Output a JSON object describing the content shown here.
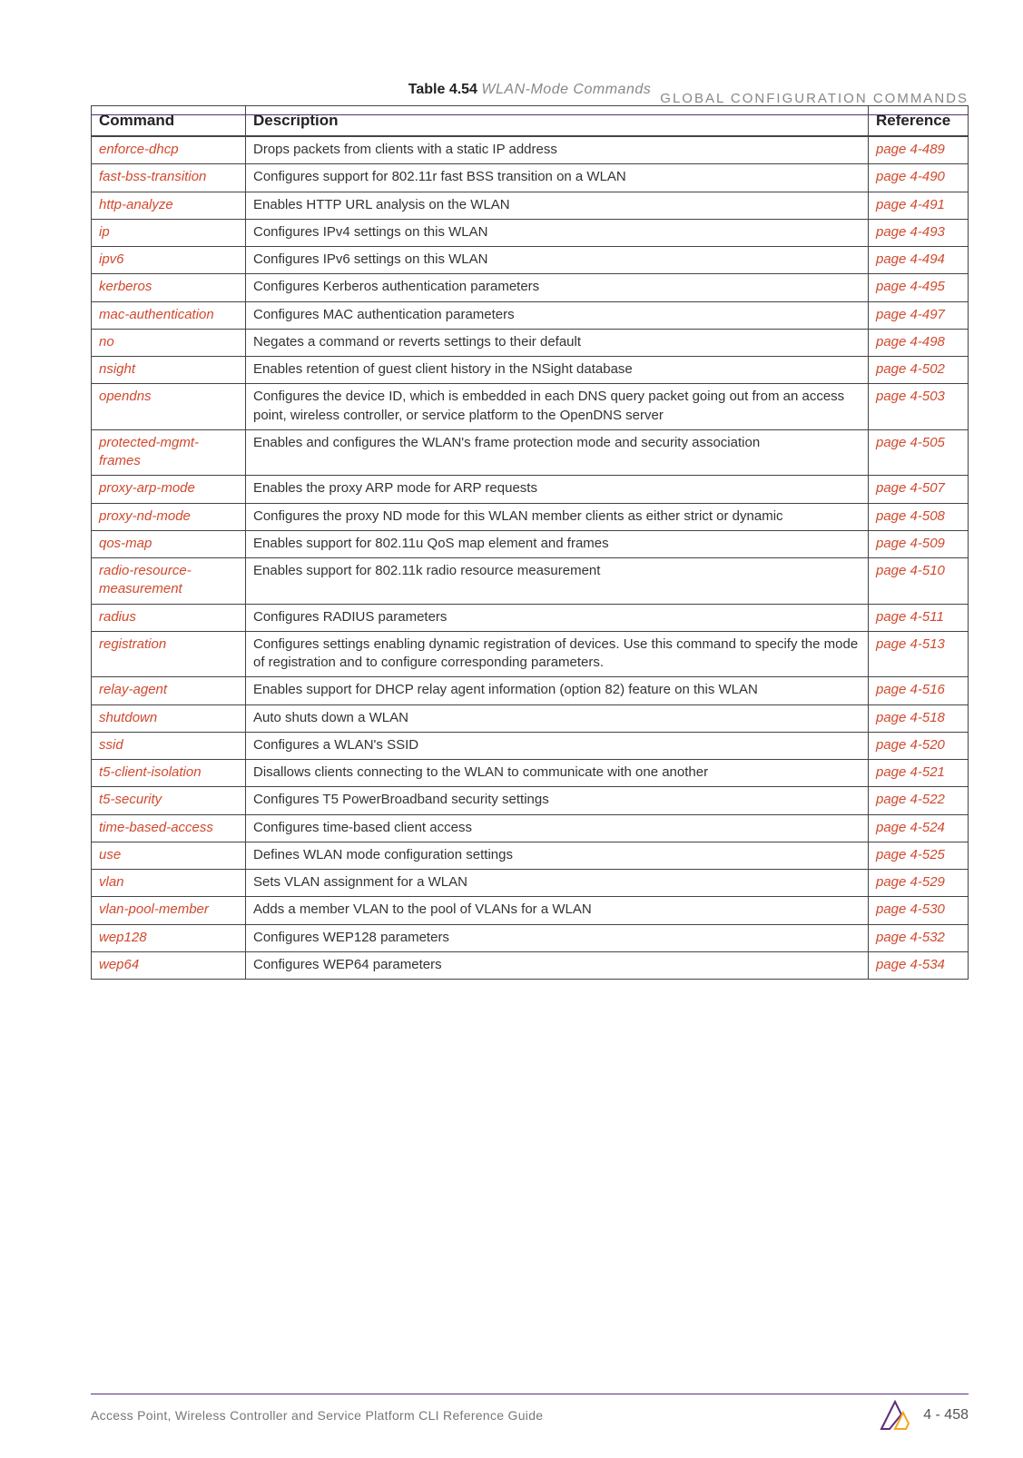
{
  "running_head": "GLOBAL CONFIGURATION COMMANDS",
  "caption_label": "Table 4.54",
  "caption_title": "WLAN-Mode Commands",
  "columns": {
    "cmd": "Command",
    "desc": "Description",
    "ref": "Reference"
  },
  "rows": [
    {
      "cmd": "enforce-dhcp",
      "desc": "Drops packets from clients with a static IP address",
      "ref": "page 4-489"
    },
    {
      "cmd": "fast-bss-transition",
      "desc": "Configures support for 802.11r fast BSS transition on a WLAN",
      "ref": "page 4-490"
    },
    {
      "cmd": "http-analyze",
      "desc": "Enables HTTP URL analysis on the WLAN",
      "ref": "page 4-491"
    },
    {
      "cmd": "ip",
      "desc": "Configures IPv4 settings on this WLAN",
      "ref": "page 4-493"
    },
    {
      "cmd": "ipv6",
      "desc": "Configures IPv6 settings on this WLAN",
      "ref": "page 4-494"
    },
    {
      "cmd": "kerberos",
      "desc": "Configures Kerberos authentication parameters",
      "ref": "page 4-495"
    },
    {
      "cmd": "mac-authentication",
      "desc": "Configures MAC authentication parameters",
      "ref": "page 4-497"
    },
    {
      "cmd": "no",
      "desc": "Negates a command or reverts settings to their default",
      "ref": "page 4-498"
    },
    {
      "cmd": "nsight",
      "desc": "Enables retention of guest client history in the NSight database",
      "ref": "page 4-502"
    },
    {
      "cmd": "opendns",
      "desc": "Configures the device ID, which is embedded in each DNS query packet going out from an access point, wireless controller, or service platform to the OpenDNS server",
      "ref": "page 4-503"
    },
    {
      "cmd": "protected-mgmt-frames",
      "desc": "Enables and configures the WLAN's frame protection mode and security association",
      "ref": "page 4-505"
    },
    {
      "cmd": "proxy-arp-mode",
      "desc": "Enables the proxy ARP mode for ARP requests",
      "ref": "page 4-507"
    },
    {
      "cmd": "proxy-nd-mode",
      "desc": "Configures the proxy ND mode for this WLAN member clients as either strict or dynamic",
      "ref": "page 4-508"
    },
    {
      "cmd": "qos-map",
      "desc": "Enables support for 802.11u QoS map element and frames",
      "ref": "page 4-509"
    },
    {
      "cmd": "radio-resource-measurement",
      "desc": "Enables support for 802.11k radio resource measurement",
      "ref": "page 4-510"
    },
    {
      "cmd": "radius",
      "desc": "Configures RADIUS parameters",
      "ref": "page 4-511"
    },
    {
      "cmd": "registration",
      "desc": "Configures settings enabling dynamic registration of devices. Use this command to specify the mode of registration and to configure corresponding parameters.",
      "ref": "page 4-513"
    },
    {
      "cmd": "relay-agent",
      "desc": "Enables support for DHCP relay agent information (option 82) feature on this WLAN",
      "ref": "page 4-516"
    },
    {
      "cmd": "shutdown",
      "desc": "Auto shuts down a WLAN",
      "ref": "page 4-518"
    },
    {
      "cmd": "ssid",
      "desc": "Configures a WLAN's SSID",
      "ref": "page 4-520"
    },
    {
      "cmd": "t5-client-isolation",
      "desc": "Disallows clients connecting to the WLAN to communicate with one another",
      "ref": "page 4-521"
    },
    {
      "cmd": "t5-security",
      "desc": "Configures T5 PowerBroadband security settings",
      "ref": "page 4-522"
    },
    {
      "cmd": "time-based-access",
      "desc": "Configures time-based client access",
      "ref": "page 4-524"
    },
    {
      "cmd": "use",
      "desc": "Defines WLAN mode configuration settings",
      "ref": "page 4-525"
    },
    {
      "cmd": "vlan",
      "desc": "Sets VLAN assignment for a WLAN",
      "ref": "page 4-529"
    },
    {
      "cmd": "vlan-pool-member",
      "desc": "Adds a member VLAN to the pool of VLANs for a WLAN",
      "ref": "page 4-530"
    },
    {
      "cmd": "wep128",
      "desc": "Configures WEP128 parameters",
      "ref": "page 4-532"
    },
    {
      "cmd": "wep64",
      "desc": "Configures WEP64 parameters",
      "ref": "page 4-534"
    }
  ],
  "footer_text": "Access Point, Wireless Controller and Service Platform CLI Reference Guide",
  "page_number": "4 - 458",
  "colors": {
    "accent_purple": "#5b2d7b",
    "link_orange": "#d1492e",
    "muted_gray": "#888888"
  }
}
